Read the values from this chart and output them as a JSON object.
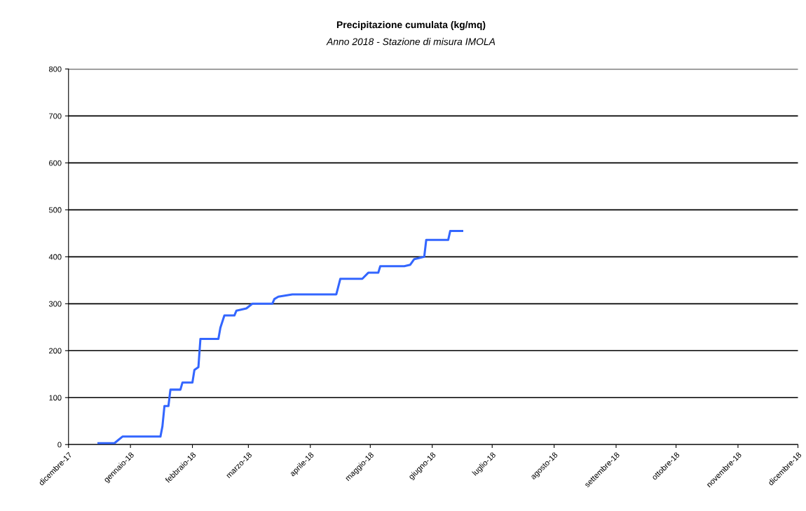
{
  "chart_data": {
    "type": "line",
    "title": "Precipitazione cumulata (kg/mq)",
    "subtitle": "Anno 2018 - Stazione di misura IMOLA",
    "x": [
      "2017-12-16",
      "2017-12-24",
      "2017-12-26",
      "2017-12-28",
      "2018-01-16",
      "2018-01-17",
      "2018-01-18",
      "2018-01-20",
      "2018-01-21",
      "2018-01-26",
      "2018-01-27",
      "2018-02-01",
      "2018-02-02",
      "2018-02-04",
      "2018-02-05",
      "2018-02-14",
      "2018-02-15",
      "2018-02-17",
      "2018-02-22",
      "2018-02-23",
      "2018-02-28",
      "2018-03-03",
      "2018-03-13",
      "2018-03-14",
      "2018-03-16",
      "2018-03-23",
      "2018-04-14",
      "2018-04-16",
      "2018-04-27",
      "2018-04-30",
      "2018-05-05",
      "2018-05-06",
      "2018-05-18",
      "2018-05-21",
      "2018-05-23",
      "2018-05-28",
      "2018-05-29",
      "2018-06-09",
      "2018-06-10",
      "2018-06-16"
    ],
    "series": [
      {
        "color": "#3366ff",
        "values": [
          3,
          3,
          10,
          17,
          17,
          39,
          82,
          82,
          117,
          117,
          132,
          132,
          159,
          165,
          225,
          225,
          249,
          275,
          275,
          285,
          290,
          300,
          300,
          310,
          315,
          320,
          320,
          353,
          353,
          366,
          366,
          380,
          380,
          383,
          395,
          400,
          436,
          436,
          455,
          455
        ]
      }
    ],
    "xlim": [
      "2017-12-01",
      "2018-12-01"
    ],
    "xticks": [
      {
        "value": "2017-12-01",
        "label": "dicembre-17"
      },
      {
        "value": "2018-01-01",
        "label": "gennaio-18"
      },
      {
        "value": "2018-02-01",
        "label": "febbraio-18"
      },
      {
        "value": "2018-03-01",
        "label": "marzo-18"
      },
      {
        "value": "2018-04-01",
        "label": "aprile-18"
      },
      {
        "value": "2018-05-01",
        "label": "maggio-18"
      },
      {
        "value": "2018-06-01",
        "label": "giugno-18"
      },
      {
        "value": "2018-07-01",
        "label": "luglio-18"
      },
      {
        "value": "2018-08-01",
        "label": "agosto-18"
      },
      {
        "value": "2018-09-01",
        "label": "settembre-18"
      },
      {
        "value": "2018-10-01",
        "label": "ottobre-18"
      },
      {
        "value": "2018-11-01",
        "label": "novembre-18"
      },
      {
        "value": "2018-12-01",
        "label": "dicembre-18"
      }
    ],
    "ylim": [
      0,
      800
    ],
    "yticks": [
      0,
      100,
      200,
      300,
      400,
      500,
      600,
      700,
      800
    ],
    "grid": "y",
    "legend": false,
    "marker": "none",
    "line_style": "solid"
  }
}
